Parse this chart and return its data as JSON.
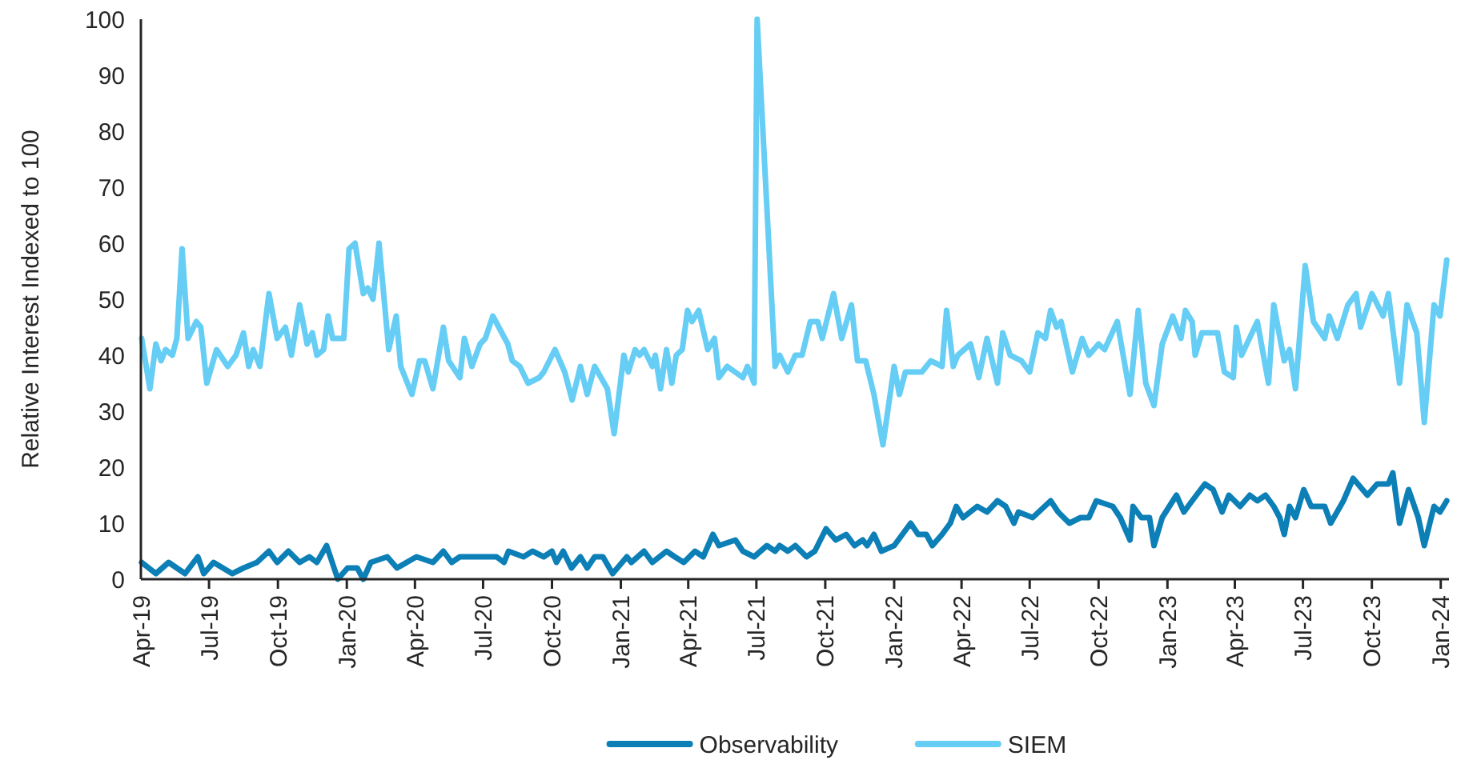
{
  "chart_data": {
    "type": "line",
    "ylabel": "Relative Interest Indexed to 100",
    "ylim": [
      0,
      100
    ],
    "yticks": [
      0,
      10,
      20,
      30,
      40,
      50,
      60,
      70,
      80,
      90,
      100
    ],
    "xlim": [
      "2019-04-01",
      "2024-01-12"
    ],
    "xticks": [
      {
        "value": "2019-04-01",
        "label": "Apr-19"
      },
      {
        "value": "2019-07-01",
        "label": "Jul-19"
      },
      {
        "value": "2019-10-01",
        "label": "Oct-19"
      },
      {
        "value": "2020-01-01",
        "label": "Jan-20"
      },
      {
        "value": "2020-04-01",
        "label": "Apr-20"
      },
      {
        "value": "2020-07-01",
        "label": "Jul-20"
      },
      {
        "value": "2020-10-01",
        "label": "Oct-20"
      },
      {
        "value": "2021-01-01",
        "label": "Jan-21"
      },
      {
        "value": "2021-04-01",
        "label": "Apr-21"
      },
      {
        "value": "2021-07-01",
        "label": "Jul-21"
      },
      {
        "value": "2021-10-01",
        "label": "Oct-21"
      },
      {
        "value": "2022-01-01",
        "label": "Jan-22"
      },
      {
        "value": "2022-04-01",
        "label": "Apr-22"
      },
      {
        "value": "2022-07-01",
        "label": "Jul-22"
      },
      {
        "value": "2022-10-01",
        "label": "Oct-22"
      },
      {
        "value": "2023-01-01",
        "label": "Jan-23"
      },
      {
        "value": "2023-04-01",
        "label": "Apr-23"
      },
      {
        "value": "2023-07-01",
        "label": "Jul-23"
      },
      {
        "value": "2023-10-01",
        "label": "Oct-23"
      },
      {
        "value": "2024-01-01",
        "label": "Jan-24"
      }
    ],
    "grid": false,
    "legend": "bottom",
    "line_style": "solid",
    "marker": "none",
    "series": [
      {
        "name": "Observability",
        "color": "#0b7fb6",
        "x": [
          "2019-04-02",
          "2019-04-21",
          "2019-05-08",
          "2019-05-30",
          "2019-06-16",
          "2019-06-24",
          "2019-07-07",
          "2019-08-01",
          "2019-08-16",
          "2019-09-03",
          "2019-09-19",
          "2019-09-30",
          "2019-10-15",
          "2019-10-30",
          "2019-11-12",
          "2019-11-22",
          "2019-12-05",
          "2019-12-20",
          "2020-01-02",
          "2020-01-15",
          "2020-01-23",
          "2020-02-02",
          "2020-02-24",
          "2020-03-08",
          "2020-04-03",
          "2020-04-25",
          "2020-05-09",
          "2020-05-20",
          "2020-05-31",
          "2020-07-19",
          "2020-07-29",
          "2020-08-04",
          "2020-08-24",
          "2020-09-05",
          "2020-09-20",
          "2020-10-01",
          "2020-10-07",
          "2020-10-16",
          "2020-10-27",
          "2020-11-08",
          "2020-11-17",
          "2020-11-27",
          "2020-12-08",
          "2020-12-21",
          "2021-01-09",
          "2021-01-15",
          "2021-02-01",
          "2021-02-12",
          "2021-03-03",
          "2021-03-14",
          "2021-03-26",
          "2021-04-10",
          "2021-04-21",
          "2021-05-04",
          "2021-05-12",
          "2021-06-03",
          "2021-06-13",
          "2021-06-28",
          "2021-07-15",
          "2021-07-26",
          "2021-08-01",
          "2021-08-12",
          "2021-08-22",
          "2021-09-06",
          "2021-09-17",
          "2021-10-02",
          "2021-10-15",
          "2021-10-29",
          "2021-11-09",
          "2021-11-20",
          "2021-11-26",
          "2021-12-05",
          "2021-12-15",
          "2022-01-01",
          "2022-01-23",
          "2022-02-02",
          "2022-02-13",
          "2022-02-21",
          "2022-03-06",
          "2022-03-17",
          "2022-03-25",
          "2022-04-03",
          "2022-04-22",
          "2022-05-05",
          "2022-05-19",
          "2022-05-30",
          "2022-06-10",
          "2022-06-16",
          "2022-07-05",
          "2022-07-29",
          "2022-08-08",
          "2022-08-23",
          "2022-09-07",
          "2022-09-18",
          "2022-09-28",
          "2022-10-20",
          "2022-10-30",
          "2022-11-12",
          "2022-11-16",
          "2022-11-27",
          "2022-12-08",
          "2022-12-14",
          "2022-12-25",
          "2023-01-13",
          "2023-01-23",
          "2023-02-03",
          "2023-02-20",
          "2023-03-03",
          "2023-03-15",
          "2023-03-24",
          "2023-04-08",
          "2023-04-21",
          "2023-05-01",
          "2023-05-12",
          "2023-05-23",
          "2023-05-31",
          "2023-06-06",
          "2023-06-13",
          "2023-06-21",
          "2023-07-02",
          "2023-07-12",
          "2023-07-30",
          "2023-08-07",
          "2023-08-24",
          "2023-09-06",
          "2023-09-25",
          "2023-10-08",
          "2023-10-23",
          "2023-10-29",
          "2023-11-07",
          "2023-11-19",
          "2023-12-02",
          "2023-12-10",
          "2023-12-23",
          "2023-12-31",
          "2024-01-09"
        ],
        "values": [
          3,
          1,
          3,
          1,
          4,
          1,
          3,
          1,
          2,
          3,
          5,
          3,
          5,
          3,
          4,
          3,
          6,
          0,
          2,
          2,
          0,
          3,
          4,
          2,
          4,
          3,
          5,
          3,
          4,
          4,
          3,
          5,
          4,
          5,
          4,
          5,
          3,
          5,
          2,
          4,
          2,
          4,
          4,
          1,
          4,
          3,
          5,
          3,
          5,
          4,
          3,
          5,
          4,
          8,
          6,
          7,
          5,
          4,
          6,
          5,
          6,
          5,
          6,
          4,
          5,
          9,
          7,
          8,
          6,
          7,
          6,
          8,
          5,
          6,
          10,
          8,
          8,
          6,
          8,
          10,
          13,
          11,
          13,
          12,
          14,
          13,
          10,
          12,
          11,
          14,
          12,
          10,
          11,
          11,
          14,
          13,
          11,
          7,
          13,
          11,
          11,
          6,
          11,
          15,
          12,
          14,
          17,
          16,
          12,
          15,
          13,
          15,
          14,
          15,
          13,
          11,
          8,
          13,
          11,
          16,
          13,
          13,
          10,
          14,
          18,
          15,
          17,
          17,
          19,
          10,
          16,
          11,
          6,
          13,
          12,
          14
        ]
      },
      {
        "name": "SIEM",
        "color": "#66cdf5",
        "x": [
          "2019-04-02",
          "2019-04-13",
          "2019-04-21",
          "2019-04-28",
          "2019-05-04",
          "2019-05-13",
          "2019-05-19",
          "2019-05-26",
          "2019-06-03",
          "2019-06-14",
          "2019-06-20",
          "2019-06-28",
          "2019-07-11",
          "2019-07-26",
          "2019-08-06",
          "2019-08-16",
          "2019-08-23",
          "2019-08-29",
          "2019-09-07",
          "2019-09-19",
          "2019-09-30",
          "2019-10-11",
          "2019-10-19",
          "2019-10-30",
          "2019-11-09",
          "2019-11-16",
          "2019-11-22",
          "2019-12-01",
          "2019-12-07",
          "2019-12-13",
          "2019-12-28",
          "2020-01-04",
          "2020-01-12",
          "2020-01-23",
          "2020-01-29",
          "2020-02-05",
          "2020-02-13",
          "2020-02-26",
          "2020-03-07",
          "2020-03-13",
          "2020-03-28",
          "2020-04-07",
          "2020-04-14",
          "2020-04-25",
          "2020-05-09",
          "2020-05-16",
          "2020-05-31",
          "2020-06-06",
          "2020-06-16",
          "2020-06-27",
          "2020-07-04",
          "2020-07-14",
          "2020-08-03",
          "2020-08-09",
          "2020-08-19",
          "2020-08-30",
          "2020-09-14",
          "2020-09-20",
          "2020-10-05",
          "2020-10-18",
          "2020-10-28",
          "2020-11-08",
          "2020-11-17",
          "2020-11-27",
          "2020-12-14",
          "2020-12-23",
          "2021-01-05",
          "2021-01-11",
          "2021-01-20",
          "2021-01-26",
          "2021-02-01",
          "2021-02-12",
          "2021-02-16",
          "2021-02-23",
          "2021-03-03",
          "2021-03-10",
          "2021-03-16",
          "2021-03-24",
          "2021-03-31",
          "2021-04-06",
          "2021-04-15",
          "2021-04-27",
          "2021-05-06",
          "2021-05-12",
          "2021-05-23",
          "2021-06-13",
          "2021-06-19",
          "2021-06-28",
          "2021-07-02",
          "2021-07-26",
          "2021-08-01",
          "2021-08-12",
          "2021-08-22",
          "2021-08-31",
          "2021-09-11",
          "2021-09-21",
          "2021-09-27",
          "2021-10-12",
          "2021-10-23",
          "2021-11-05",
          "2021-11-13",
          "2021-11-24",
          "2021-12-05",
          "2021-12-17",
          "2022-01-01",
          "2022-01-08",
          "2022-01-16",
          "2022-02-07",
          "2022-02-19",
          "2022-03-06",
          "2022-03-12",
          "2022-03-21",
          "2022-03-27",
          "2022-04-13",
          "2022-04-24",
          "2022-05-05",
          "2022-05-19",
          "2022-05-26",
          "2022-06-05",
          "2022-06-20",
          "2022-07-01",
          "2022-07-12",
          "2022-07-22",
          "2022-07-29",
          "2022-08-06",
          "2022-08-12",
          "2022-08-27",
          "2022-09-09",
          "2022-09-18",
          "2022-10-01",
          "2022-10-09",
          "2022-10-26",
          "2022-11-12",
          "2022-11-23",
          "2022-12-03",
          "2022-12-14",
          "2022-12-25",
          "2023-01-08",
          "2023-01-19",
          "2023-01-25",
          "2023-02-03",
          "2023-02-07",
          "2023-02-16",
          "2023-03-09",
          "2023-03-18",
          "2023-03-30",
          "2023-04-03",
          "2023-04-10",
          "2023-05-01",
          "2023-05-16",
          "2023-05-23",
          "2023-06-06",
          "2023-06-13",
          "2023-06-21",
          "2023-07-04",
          "2023-07-15",
          "2023-07-30",
          "2023-08-05",
          "2023-08-16",
          "2023-08-30",
          "2023-09-10",
          "2023-09-16",
          "2023-10-01",
          "2023-10-16",
          "2023-10-23",
          "2023-11-07",
          "2023-11-17",
          "2023-11-30",
          "2023-12-10",
          "2023-12-23",
          "2023-12-31",
          "2024-01-09"
        ],
        "values": [
          43,
          34,
          42,
          39,
          41,
          40,
          43,
          59,
          43,
          46,
          45,
          35,
          41,
          38,
          40,
          44,
          38,
          41,
          38,
          51,
          43,
          45,
          40,
          49,
          42,
          44,
          40,
          41,
          47,
          43,
          43,
          59,
          60,
          51,
          52,
          50,
          60,
          41,
          47,
          38,
          33,
          39,
          39,
          34,
          45,
          39,
          36,
          43,
          38,
          42,
          43,
          47,
          42,
          39,
          38,
          35,
          36,
          37,
          41,
          37,
          32,
          38,
          33,
          38,
          34,
          26,
          40,
          37,
          41,
          40,
          41,
          38,
          40,
          34,
          41,
          35,
          40,
          41,
          48,
          46,
          48,
          41,
          43,
          36,
          38,
          36,
          38,
          35,
          100,
          38,
          40,
          37,
          40,
          40,
          46,
          46,
          43,
          51,
          43,
          49,
          39,
          39,
          33,
          24,
          38,
          33,
          37,
          37,
          39,
          38,
          48,
          38,
          40,
          42,
          36,
          43,
          35,
          44,
          40,
          39,
          37,
          44,
          43,
          48,
          45,
          46,
          37,
          43,
          40,
          42,
          41,
          46,
          33,
          48,
          35,
          31,
          42,
          47,
          43,
          48,
          46,
          40,
          44,
          44,
          37,
          36,
          45,
          40,
          46,
          35,
          49,
          39,
          41,
          34,
          56,
          46,
          43,
          47,
          43,
          49,
          51,
          45,
          51,
          47,
          51,
          35,
          49,
          44,
          28,
          49,
          47,
          57
        ]
      }
    ]
  }
}
